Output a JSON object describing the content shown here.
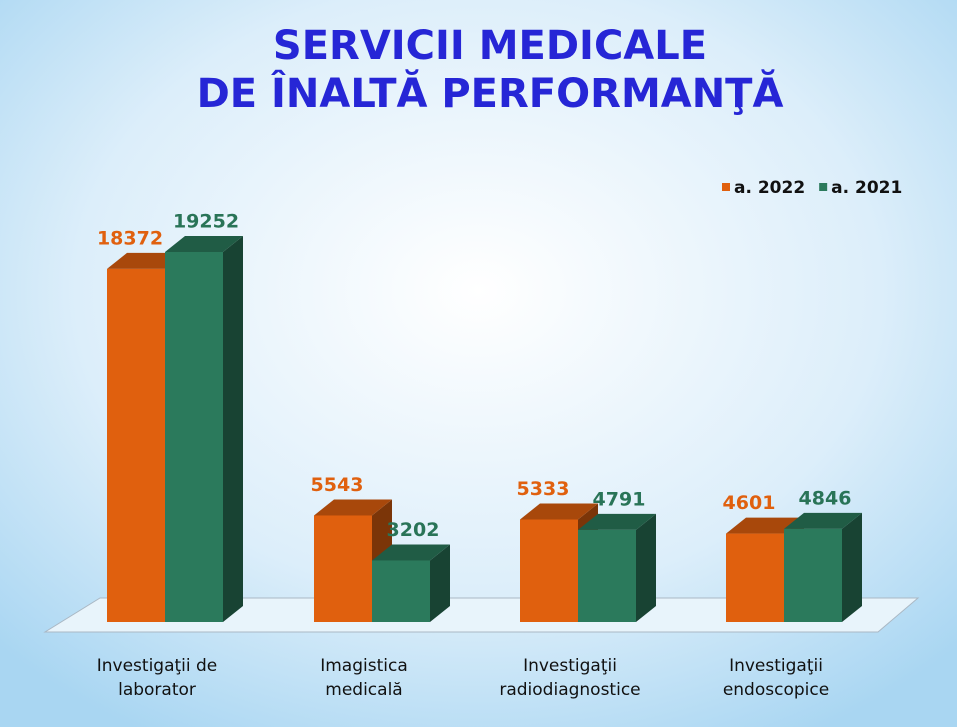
{
  "chart_data": {
    "type": "bar3d",
    "title": [
      "SERVICII MEDICALE",
      "DE ÎNALTĂ PERFORMANŢĂ"
    ],
    "categories": [
      "Investigaţii de laborator",
      "Imagistica medicală",
      "Investigaţii radiodiagnostice",
      "Investigaţii endoscopice"
    ],
    "series": [
      {
        "name": "a. 2022",
        "color": "#e0600e",
        "values": [
          18372,
          5543,
          5333,
          4601
        ]
      },
      {
        "name": "a. 2021",
        "color": "#2b7a5c",
        "values": [
          19252,
          3202,
          4791,
          4846
        ]
      }
    ],
    "legend": "top-right"
  }
}
